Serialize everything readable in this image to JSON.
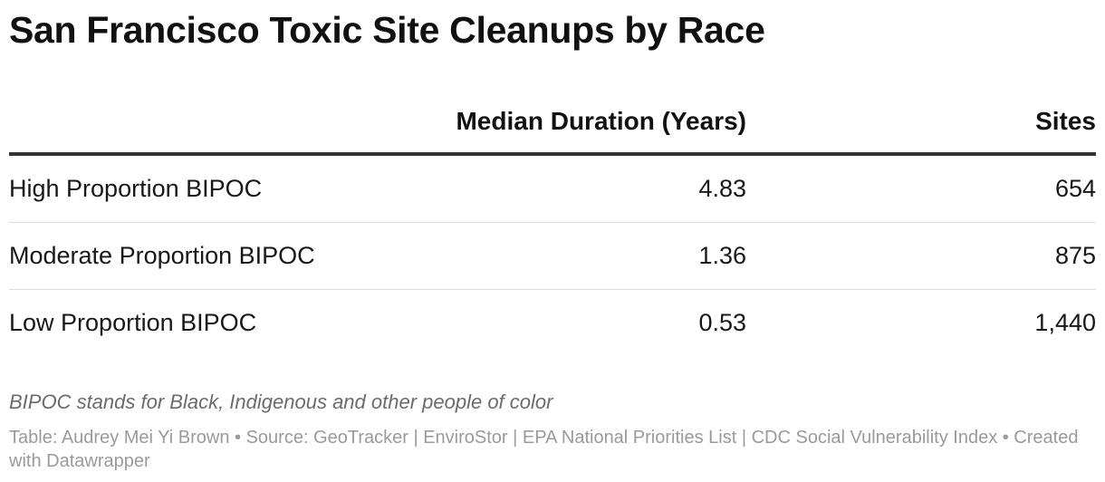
{
  "title": "San Francisco Toxic Site Cleanups by Race",
  "chart_data": {
    "type": "table",
    "columns": [
      "",
      "Median Duration (Years)",
      "Sites"
    ],
    "rows": [
      {
        "name": "High Proportion BIPOC",
        "median_duration": "4.83",
        "sites": "654"
      },
      {
        "name": "Moderate Proportion BIPOC",
        "median_duration": "1.36",
        "sites": "875"
      },
      {
        "name": "Low Proportion BIPOC",
        "median_duration": "0.53",
        "sites": "1,440"
      }
    ]
  },
  "notes": "BIPOC stands for Black, Indigenous and other people of color",
  "footer": "Table: Audrey Mei Yi Brown • Source: GeoTracker | EnviroStor | EPA National Priorities List | CDC Social Vulnerability Index • Created with Datawrapper"
}
